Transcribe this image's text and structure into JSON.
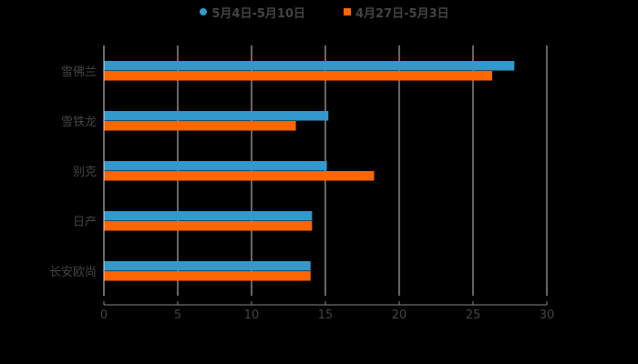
{
  "legend": {
    "series1": "5月4日-5月10日",
    "series2": "4月27日-5月3日"
  },
  "colors": {
    "series1": "#3399cc",
    "series2": "#ff6600",
    "background": "#000000",
    "gridline": "#cccccc",
    "text": "#444444"
  },
  "chart_data": {
    "type": "bar",
    "orientation": "horizontal",
    "title": "",
    "xlabel": "",
    "ylabel": "",
    "categories": [
      "雪佛兰",
      "雪铁龙",
      "别克",
      "日产",
      "长安欧尚"
    ],
    "series": [
      {
        "name": "5月4日-5月10日",
        "values": [
          27.8,
          15.2,
          15.1,
          14.1,
          14.0
        ]
      },
      {
        "name": "4月27日-5月3日",
        "values": [
          26.3,
          13.0,
          18.3,
          14.1,
          14.0
        ]
      }
    ],
    "xlim": [
      0,
      30
    ],
    "xticks": [
      0,
      5,
      10,
      15,
      20,
      25,
      30
    ],
    "grid": true,
    "legend_position": "top"
  }
}
